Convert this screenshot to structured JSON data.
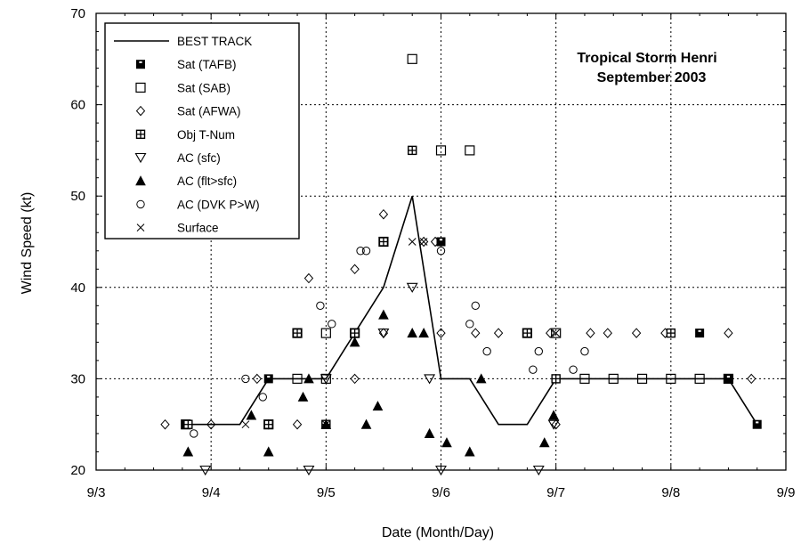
{
  "chart_data": {
    "type": "scatter",
    "title": "Tropical Storm Henri",
    "subtitle": "September 2003",
    "xlabel": "Date (Month/Day)",
    "ylabel": "Wind Speed (kt)",
    "x_ticks": [
      "9/3",
      "9/4",
      "9/5",
      "9/6",
      "9/7",
      "9/8",
      "9/9"
    ],
    "x_unit": "days since 9/3",
    "xlim": [
      0,
      6
    ],
    "ylim": [
      20,
      70
    ],
    "y_ticks": [
      20,
      30,
      40,
      50,
      60,
      70
    ],
    "grid": true,
    "legend_position": "top-left",
    "series": [
      {
        "name": "BEST TRACK",
        "marker": "line",
        "points": [
          [
            0.75,
            25
          ],
          [
            1.0,
            25
          ],
          [
            1.25,
            25
          ],
          [
            1.5,
            30
          ],
          [
            1.75,
            30
          ],
          [
            2.0,
            30
          ],
          [
            2.25,
            35
          ],
          [
            2.5,
            40
          ],
          [
            2.75,
            50
          ],
          [
            3.0,
            30
          ],
          [
            3.25,
            30
          ],
          [
            3.5,
            25
          ],
          [
            3.75,
            25
          ],
          [
            4.0,
            30
          ],
          [
            4.25,
            30
          ],
          [
            4.5,
            30
          ],
          [
            4.75,
            30
          ],
          [
            5.0,
            30
          ],
          [
            5.25,
            30
          ],
          [
            5.5,
            30
          ],
          [
            5.75,
            25
          ]
        ]
      },
      {
        "name": "Sat (TAFB)",
        "marker": "filled-square",
        "points": [
          [
            0.78,
            25
          ],
          [
            1.5,
            30
          ],
          [
            2.0,
            25
          ],
          [
            2.25,
            35
          ],
          [
            2.5,
            45
          ],
          [
            2.75,
            55
          ],
          [
            3.0,
            45
          ],
          [
            3.75,
            35
          ],
          [
            5.25,
            35
          ],
          [
            5.5,
            30
          ],
          [
            5.75,
            25
          ]
        ]
      },
      {
        "name": "Sat (SAB)",
        "marker": "open-square",
        "points": [
          [
            0.78,
            25
          ],
          [
            1.5,
            25
          ],
          [
            1.75,
            35
          ],
          [
            1.75,
            30
          ],
          [
            2.0,
            30
          ],
          [
            2.0,
            35
          ],
          [
            2.25,
            35
          ],
          [
            2.5,
            45
          ],
          [
            2.75,
            65
          ],
          [
            3.0,
            55
          ],
          [
            3.25,
            55
          ],
          [
            3.75,
            35
          ],
          [
            4.0,
            35
          ],
          [
            4.25,
            30
          ],
          [
            4.5,
            30
          ],
          [
            4.75,
            30
          ],
          [
            5.0,
            30
          ],
          [
            5.25,
            30
          ],
          [
            5.5,
            30
          ]
        ]
      },
      {
        "name": "Sat (AFWA)",
        "marker": "diamond",
        "points": [
          [
            0.6,
            25
          ],
          [
            1.0,
            25
          ],
          [
            1.4,
            30
          ],
          [
            1.5,
            25
          ],
          [
            1.75,
            25
          ],
          [
            1.85,
            41
          ],
          [
            2.25,
            30
          ],
          [
            2.25,
            42
          ],
          [
            2.5,
            35
          ],
          [
            2.5,
            48
          ],
          [
            2.85,
            45
          ],
          [
            2.95,
            45
          ],
          [
            3.0,
            35
          ],
          [
            3.3,
            35
          ],
          [
            3.5,
            35
          ],
          [
            3.95,
            35
          ],
          [
            4.3,
            35
          ],
          [
            4.45,
            35
          ],
          [
            4.7,
            35
          ],
          [
            4.95,
            35
          ],
          [
            5.5,
            35
          ],
          [
            5.7,
            30
          ],
          [
            4.0,
            25
          ]
        ]
      },
      {
        "name": "Obj T-Num",
        "marker": "crossed-square",
        "points": [
          [
            0.8,
            25
          ],
          [
            1.5,
            25
          ],
          [
            1.75,
            35
          ],
          [
            2.0,
            25
          ],
          [
            2.25,
            35
          ],
          [
            2.5,
            45
          ],
          [
            2.75,
            55
          ],
          [
            3.75,
            35
          ],
          [
            4.0,
            30
          ],
          [
            5.0,
            35
          ]
        ]
      },
      {
        "name": "AC (sfc)",
        "marker": "down-triangle",
        "points": [
          [
            0.95,
            20
          ],
          [
            1.85,
            20
          ],
          [
            2.0,
            30
          ],
          [
            2.5,
            35
          ],
          [
            2.75,
            40
          ],
          [
            2.9,
            30
          ],
          [
            3.0,
            20
          ],
          [
            3.85,
            20
          ],
          [
            3.98,
            25
          ]
        ]
      },
      {
        "name": "AC (flt>sfc)",
        "marker": "up-triangle",
        "points": [
          [
            0.8,
            22
          ],
          [
            1.35,
            26
          ],
          [
            1.5,
            22
          ],
          [
            1.8,
            28
          ],
          [
            1.85,
            30
          ],
          [
            2.0,
            25
          ],
          [
            2.25,
            34
          ],
          [
            2.35,
            25
          ],
          [
            2.45,
            27
          ],
          [
            2.5,
            37
          ],
          [
            2.75,
            35
          ],
          [
            2.85,
            35
          ],
          [
            2.9,
            24
          ],
          [
            3.05,
            23
          ],
          [
            3.25,
            22
          ],
          [
            3.35,
            30
          ],
          [
            3.9,
            23
          ],
          [
            3.98,
            26
          ]
        ]
      },
      {
        "name": "AC (DVK P>W)",
        "marker": "circle",
        "points": [
          [
            0.85,
            24
          ],
          [
            1.3,
            30
          ],
          [
            1.45,
            28
          ],
          [
            2.05,
            36
          ],
          [
            1.95,
            38
          ],
          [
            2.3,
            44
          ],
          [
            2.35,
            44
          ],
          [
            3.0,
            44
          ],
          [
            3.3,
            38
          ],
          [
            3.25,
            36
          ],
          [
            3.4,
            33
          ],
          [
            3.8,
            31
          ],
          [
            3.85,
            33
          ],
          [
            4.15,
            31
          ],
          [
            4.25,
            33
          ]
        ]
      },
      {
        "name": "Surface",
        "marker": "x",
        "points": [
          [
            1.3,
            25
          ],
          [
            2.75,
            45
          ],
          [
            2.85,
            45
          ],
          [
            2.0,
            25
          ],
          [
            4.0,
            35
          ]
        ]
      }
    ]
  }
}
